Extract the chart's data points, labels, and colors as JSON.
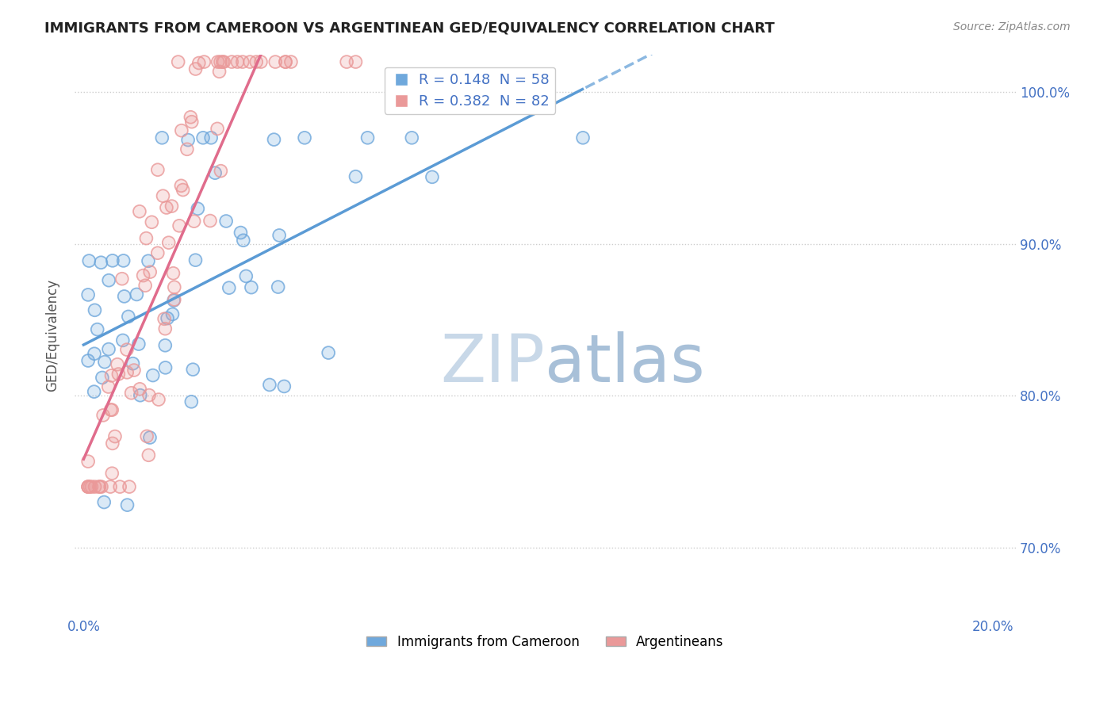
{
  "title": "IMMIGRANTS FROM CAMEROON VS ARGENTINEAN GED/EQUIVALENCY CORRELATION CHART",
  "source": "Source: ZipAtlas.com",
  "ylabel": "GED/Equivalency",
  "legend_labels": [
    "Immigrants from Cameroon",
    "Argentineans"
  ],
  "r_cameroon": 0.148,
  "n_cameroon": 58,
  "r_argentinean": 0.382,
  "n_argentinean": 82,
  "blue_color": "#6fa8dc",
  "pink_color": "#ea9999",
  "trend_blue": "#5b9bd5",
  "trend_pink": "#e06c8c",
  "watermark_zip_color": "#c8d8e8",
  "watermark_atlas_color": "#a8c0d8",
  "background_color": "#ffffff"
}
